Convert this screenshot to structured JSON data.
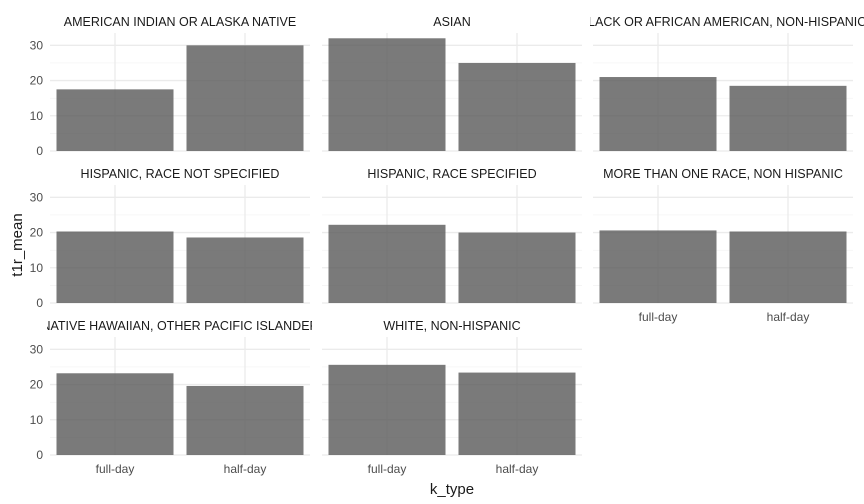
{
  "chart_data": {
    "type": "bar",
    "faceted": true,
    "xlabel": "k_type",
    "ylabel": "t1r_mean",
    "categories": [
      "full-day",
      "half-day"
    ],
    "yticks": [
      0,
      10,
      20,
      30
    ],
    "ylim": [
      0,
      33.5
    ],
    "grid": true,
    "theme": "minimal",
    "bar_color": "#595959",
    "panels": [
      {
        "title": "AMERICAN INDIAN OR ALASKA NATIVE",
        "values": [
          17.5,
          30.0
        ]
      },
      {
        "title": "ASIAN",
        "values": [
          32.0,
          25.0
        ]
      },
      {
        "title": "BLACK OR AFRICAN AMERICAN, NON-HISPANIC",
        "values": [
          21.0,
          18.5
        ]
      },
      {
        "title": "HISPANIC, RACE NOT SPECIFIED",
        "values": [
          20.3,
          18.6
        ]
      },
      {
        "title": "HISPANIC, RACE SPECIFIED",
        "values": [
          22.2,
          20.0
        ]
      },
      {
        "title": "MORE THAN ONE RACE, NON HISPANIC",
        "values": [
          20.6,
          20.3
        ]
      },
      {
        "title": "NATIVE HAWAIIAN, OTHER PACIFIC ISLANDER",
        "values": [
          23.2,
          19.6
        ]
      },
      {
        "title": "WHITE, NON-HISPANIC",
        "values": [
          25.6,
          23.4
        ]
      }
    ]
  }
}
